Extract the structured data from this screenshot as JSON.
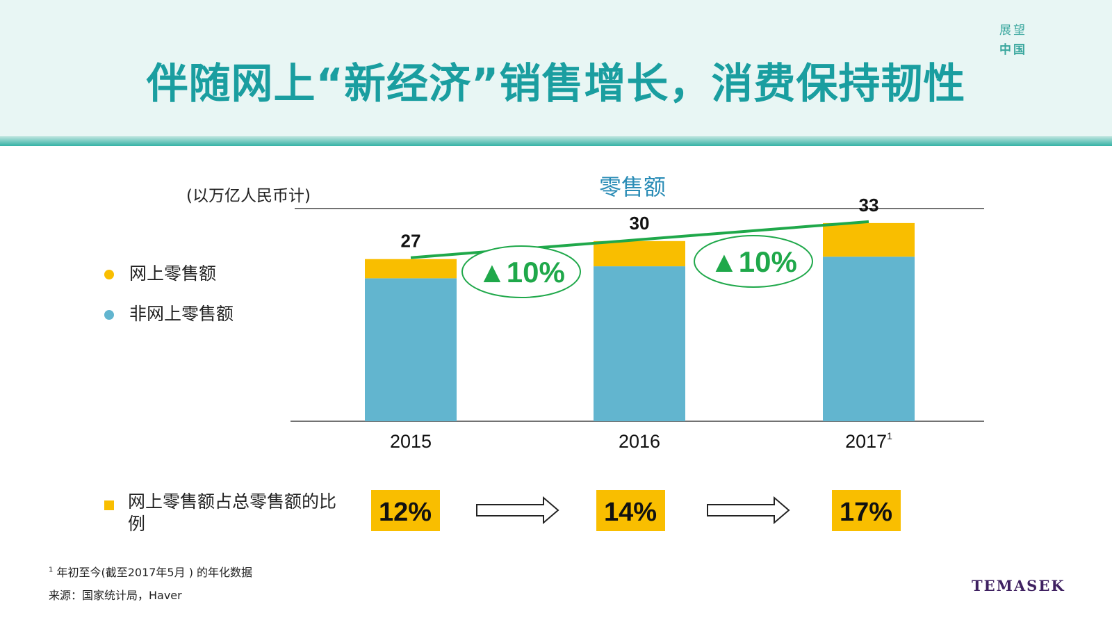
{
  "header": {
    "title": "伴随网上“新经济”销售增长，消费保持韧性",
    "brand_line1": "展望",
    "brand_line2": "中国"
  },
  "unit_label": "(以万亿人民币计)",
  "legend": {
    "online": "网上零售额",
    "offline": "非网上零售额"
  },
  "share_row": {
    "label": "网上零售额占总零售额的比例",
    "values": [
      "12%",
      "14%",
      "17%"
    ]
  },
  "growth_labels": [
    "▲10%",
    "▲10%"
  ],
  "footnotes": {
    "note1": "年初至今(截至2017年5月 ) 的年化数据",
    "note1_marker": "1",
    "source": "来源：国家统计局，Haver"
  },
  "brand_bottom": "TEMASEK",
  "colors": {
    "online": "#f9be00",
    "offline": "#62b5cf",
    "growth_line": "#1fa84a",
    "title": "#1a9ea0"
  },
  "chart_data": {
    "type": "bar",
    "stacked": true,
    "title": "零售额",
    "categories": [
      "2015",
      "2016",
      "2017"
    ],
    "category_superscripts": [
      "",
      "",
      "1"
    ],
    "series": [
      {
        "name": "非网上零售额",
        "values": [
          23.8,
          25.8,
          27.4
        ]
      },
      {
        "name": "网上零售额",
        "values": [
          3.2,
          4.2,
          5.6
        ]
      }
    ],
    "totals": [
      27,
      30,
      33
    ],
    "ylim": [
      0,
      40
    ],
    "grid": false
  }
}
